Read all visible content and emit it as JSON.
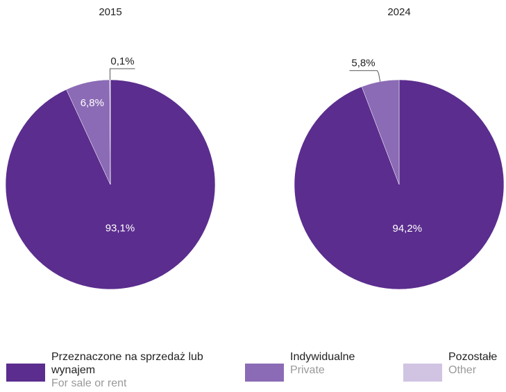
{
  "chart_data": [
    {
      "type": "pie",
      "title": "2015",
      "values": [
        93.1,
        6.8,
        0.1
      ],
      "value_labels": [
        "93,1%",
        "6,8%",
        "0,1%"
      ],
      "colors": [
        "#5b2d8e",
        "#8b6bb5",
        "#d0c4e2"
      ]
    },
    {
      "type": "pie",
      "title": "2024",
      "values": [
        94.2,
        5.8
      ],
      "value_labels": [
        "94,2%",
        "5,8%"
      ],
      "colors": [
        "#5b2d8e",
        "#8b6bb5"
      ]
    }
  ],
  "legend": [
    {
      "label": "Przeznaczone na sprzedaż lub wynajem",
      "sublabel": "For sale or rent",
      "color": "#5b2d8e"
    },
    {
      "label": "Indywidualne",
      "sublabel": "Private",
      "color": "#8b6bb5"
    },
    {
      "label": "Pozostałe",
      "sublabel": "Other",
      "color": "#d0c4e2"
    }
  ]
}
